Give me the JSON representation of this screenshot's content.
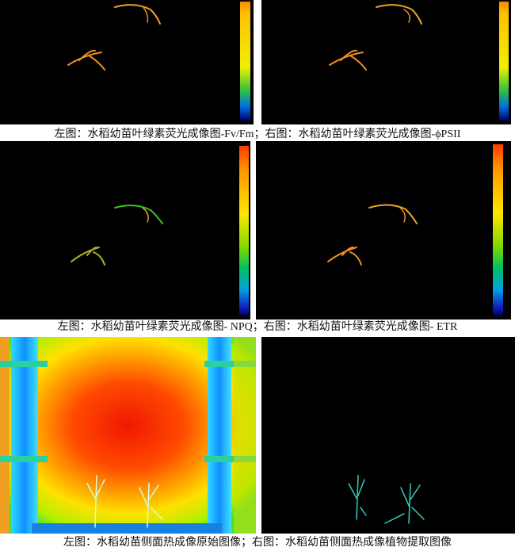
{
  "captions": [
    "左图：水稻幼苗叶绿素荧光成像图-Fv/Fm；右图：水稻幼苗叶绿素荧光成像图-ϕPSII",
    "左图：水稻幼苗叶绿素荧光成像图- NPQ；右图：水稻幼苗叶绿素荧光成像图- ETR",
    "左图：水稻幼苗侧面热成像原始图像；右图：水稻幼苗侧面热成像植物提取图像"
  ]
}
